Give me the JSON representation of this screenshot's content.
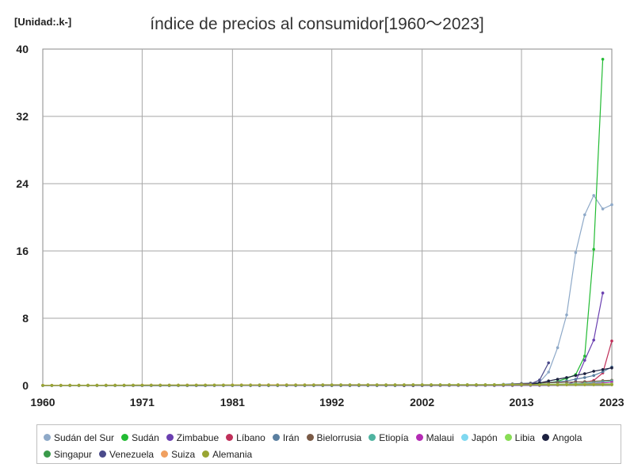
{
  "unit_label": "[Unidad:.k-]",
  "chart_data": {
    "type": "line",
    "title": "índice de precios al consumidor[1960〜2023]",
    "xlabel": "",
    "ylabel": "",
    "xlim": [
      1960,
      2023
    ],
    "ylim": [
      0,
      40
    ],
    "x_ticks": [
      1960,
      1971,
      1981,
      1992,
      2002,
      2013,
      2023
    ],
    "y_ticks": [
      0,
      8,
      16,
      24,
      32,
      40
    ],
    "grid": true,
    "legend_position": "bottom",
    "series": [
      {
        "name": "Sudán del Sur",
        "color": "#8ea9c8",
        "points": [
          [
            2008,
            0.03
          ],
          [
            2009,
            0.03
          ],
          [
            2010,
            0.04
          ],
          [
            2011,
            0.05
          ],
          [
            2012,
            0.08
          ],
          [
            2013,
            0.08
          ],
          [
            2014,
            0.1
          ],
          [
            2015,
            0.4
          ],
          [
            2016,
            1.6
          ],
          [
            2017,
            4.5
          ],
          [
            2018,
            8.4
          ],
          [
            2019,
            15.8
          ],
          [
            2020,
            20.3
          ],
          [
            2021,
            22.6
          ],
          [
            2022,
            21.0
          ],
          [
            2023,
            21.5
          ]
        ]
      },
      {
        "name": "Sudán",
        "color": "#22bb33",
        "points": [
          [
            1960,
            0
          ],
          [
            2000,
            0.01
          ],
          [
            2005,
            0.03
          ],
          [
            2010,
            0.06
          ],
          [
            2012,
            0.1
          ],
          [
            2014,
            0.2
          ],
          [
            2015,
            0.25
          ],
          [
            2016,
            0.35
          ],
          [
            2017,
            0.5
          ],
          [
            2018,
            0.85
          ],
          [
            2019,
            1.3
          ],
          [
            2020,
            3.5
          ],
          [
            2021,
            16.2
          ],
          [
            2022,
            38.8
          ]
        ]
      },
      {
        "name": "Zimbabue",
        "color": "#6a3fb0",
        "points": [
          [
            2010,
            0.01
          ],
          [
            2015,
            0.02
          ],
          [
            2017,
            0.05
          ],
          [
            2018,
            0.1
          ],
          [
            2019,
            0.5
          ],
          [
            2020,
            3.0
          ],
          [
            2021,
            5.4
          ],
          [
            2022,
            11.0
          ]
        ]
      },
      {
        "name": "Líbano",
        "color": "#c0305a",
        "points": [
          [
            2010,
            0.08
          ],
          [
            2015,
            0.1
          ],
          [
            2017,
            0.12
          ],
          [
            2018,
            0.13
          ],
          [
            2019,
            0.14
          ],
          [
            2020,
            0.4
          ],
          [
            2021,
            0.6
          ],
          [
            2022,
            1.5
          ],
          [
            2023,
            5.3
          ]
        ]
      },
      {
        "name": "Irán",
        "color": "#5a7fa0",
        "points": [
          [
            2005,
            0.05
          ],
          [
            2010,
            0.1
          ],
          [
            2013,
            0.25
          ],
          [
            2015,
            0.35
          ],
          [
            2017,
            0.42
          ],
          [
            2018,
            0.55
          ],
          [
            2019,
            0.75
          ],
          [
            2020,
            0.95
          ],
          [
            2021,
            1.2
          ],
          [
            2022,
            1.65
          ],
          [
            2023,
            2.2
          ]
        ]
      },
      {
        "name": "Bielorrusia",
        "color": "#7a5a46",
        "points": [
          [
            2000,
            0.01
          ],
          [
            2005,
            0.04
          ],
          [
            2010,
            0.08
          ],
          [
            2013,
            0.2
          ],
          [
            2015,
            0.3
          ],
          [
            2017,
            0.36
          ],
          [
            2019,
            0.42
          ],
          [
            2021,
            0.5
          ],
          [
            2022,
            0.58
          ],
          [
            2023,
            0.63
          ]
        ]
      },
      {
        "name": "Etiopía",
        "color": "#4fb3a0",
        "points": [
          [
            2000,
            0.01
          ],
          [
            2010,
            0.06
          ],
          [
            2015,
            0.12
          ],
          [
            2018,
            0.18
          ],
          [
            2020,
            0.28
          ],
          [
            2021,
            0.35
          ],
          [
            2022,
            0.45
          ],
          [
            2023,
            0.55
          ]
        ]
      },
      {
        "name": "Malaui",
        "color": "#b42bb4",
        "points": [
          [
            2000,
            0.01
          ],
          [
            2010,
            0.05
          ],
          [
            2015,
            0.1
          ],
          [
            2018,
            0.15
          ],
          [
            2020,
            0.2
          ],
          [
            2021,
            0.25
          ],
          [
            2022,
            0.3
          ],
          [
            2023,
            0.4
          ]
        ]
      },
      {
        "name": "Japón",
        "color": "#7fd8f0",
        "points": [
          [
            1960,
            0.02
          ],
          [
            1990,
            0.1
          ],
          [
            2023,
            0.1
          ]
        ]
      },
      {
        "name": "Libia",
        "color": "#88dd55",
        "points": [
          [
            1960,
            0.01
          ],
          [
            2010,
            0.1
          ],
          [
            2023,
            0.2
          ]
        ]
      },
      {
        "name": "Angola",
        "color": "#1c2140",
        "points": [
          [
            2000,
            0.01
          ],
          [
            2010,
            0.05
          ],
          [
            2013,
            0.08
          ],
          [
            2014,
            0.15
          ],
          [
            2015,
            0.3
          ],
          [
            2016,
            0.55
          ],
          [
            2017,
            0.75
          ],
          [
            2018,
            0.95
          ],
          [
            2019,
            1.2
          ],
          [
            2020,
            1.4
          ],
          [
            2021,
            1.7
          ],
          [
            2022,
            1.9
          ],
          [
            2023,
            2.1
          ]
        ]
      },
      {
        "name": "Singapur",
        "color": "#3a9a4a",
        "points": [
          [
            1960,
            0.02
          ],
          [
            1990,
            0.06
          ],
          [
            2023,
            0.1
          ]
        ]
      },
      {
        "name": "Venezuela",
        "color": "#4a4a8a",
        "points": [
          [
            1960,
            0
          ],
          [
            2000,
            0.01
          ],
          [
            2010,
            0.03
          ],
          [
            2012,
            0.05
          ],
          [
            2013,
            0.1
          ],
          [
            2014,
            0.2
          ],
          [
            2015,
            0.65
          ],
          [
            2016,
            2.7
          ]
        ]
      },
      {
        "name": "Suiza",
        "color": "#f0a060",
        "points": [
          [
            1960,
            0.03
          ],
          [
            1990,
            0.09
          ],
          [
            2023,
            0.1
          ]
        ]
      },
      {
        "name": "Alemania",
        "color": "#99a533",
        "points": [
          [
            1960,
            0.03
          ],
          [
            1990,
            0.07
          ],
          [
            2023,
            0.1
          ]
        ]
      }
    ]
  }
}
